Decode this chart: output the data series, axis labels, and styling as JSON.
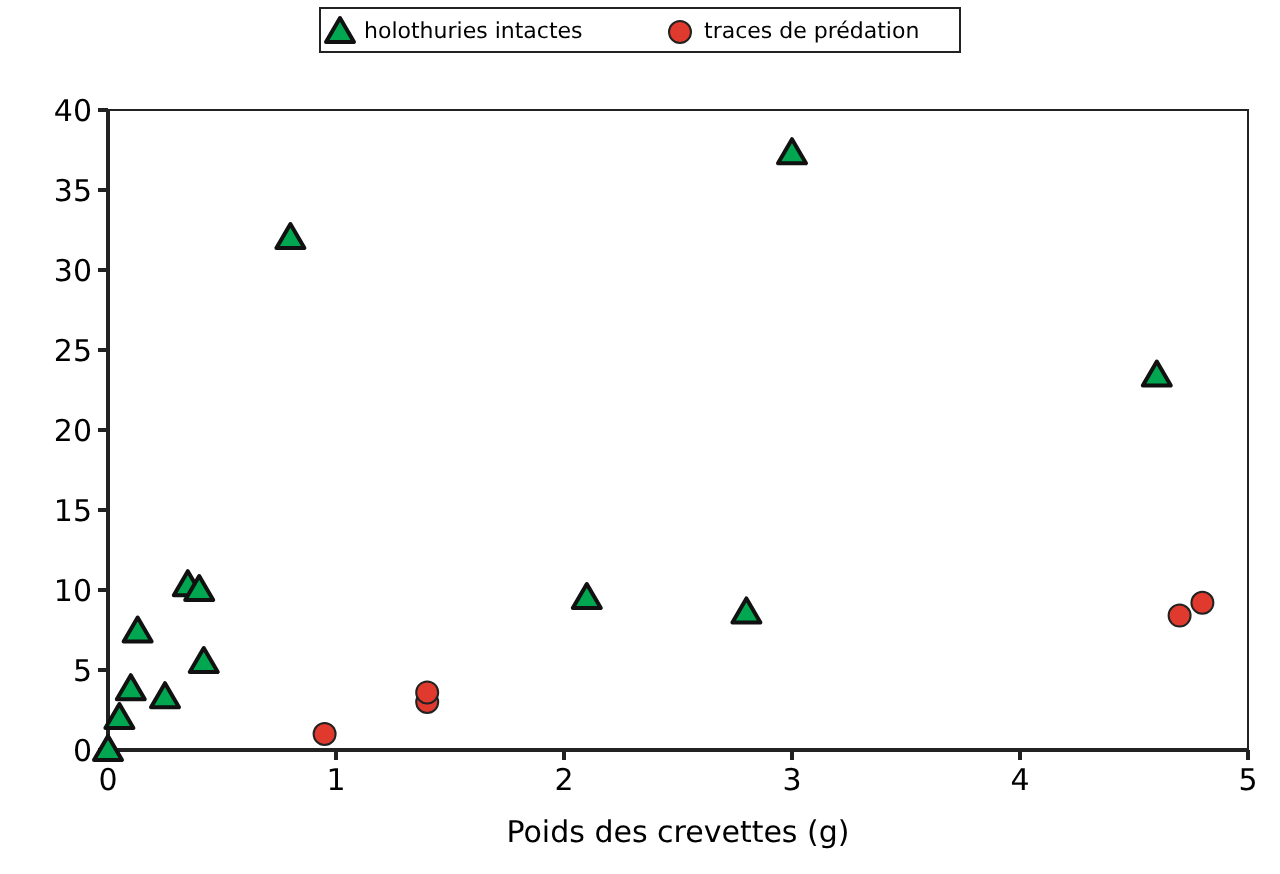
{
  "chart_data": {
    "type": "scatter",
    "xlabel": "Poids des crevettes (g)",
    "xlim": [
      0,
      5
    ],
    "xticks": [
      0,
      1,
      2,
      3,
      4,
      5
    ],
    "ylim": [
      0,
      40
    ],
    "yticks": [
      0,
      5,
      10,
      15,
      20,
      25,
      30,
      35,
      40
    ],
    "grid": false,
    "legend": "top",
    "series": [
      {
        "name": "holothuries intactes",
        "color": "#00a650",
        "marker": "triangle",
        "x": [
          0,
          0.05,
          0.1,
          0.13,
          0.25,
          0.35,
          0.4,
          0.42,
          0.8,
          2.1,
          2.8,
          3.0,
          4.6
        ],
        "values": [
          0,
          2,
          3.8,
          7.4,
          3.3,
          10.3,
          10,
          5.5,
          32,
          9.5,
          8.6,
          37.3,
          23.4
        ]
      },
      {
        "name": "traces de prédation",
        "color": "#e03a2e",
        "marker": "circle",
        "x": [
          0.95,
          1.4,
          1.4,
          4.7,
          4.8
        ],
        "values": [
          1,
          3,
          3.6,
          8.4,
          9.2
        ]
      }
    ]
  }
}
